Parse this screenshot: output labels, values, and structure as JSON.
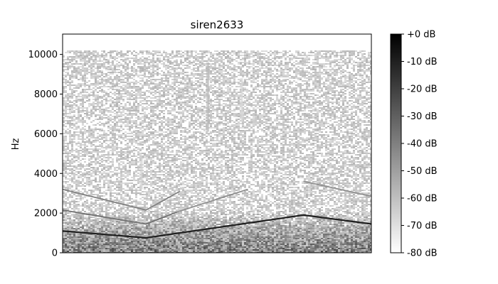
{
  "chart_data": {
    "type": "heatmap",
    "title": "siren2633",
    "xlabel": "",
    "ylabel": "Hz",
    "y_ticks": [
      0,
      2000,
      4000,
      6000,
      8000,
      10000
    ],
    "y_tick_labels": [
      "0",
      "2000",
      "4000",
      "6000",
      "8000",
      "10000"
    ],
    "ylim": [
      0,
      11025
    ],
    "x_ticks_shown": false,
    "colormap": "gray_r",
    "colorbar": {
      "ticks": [
        0,
        -10,
        -20,
        -30,
        -40,
        -50,
        -60,
        -70,
        -80
      ],
      "tick_labels": [
        "+0 dB",
        "-10 dB",
        "-20 dB",
        "-30 dB",
        "-40 dB",
        "-50 dB",
        "-60 dB",
        "-70 dB",
        "-80 dB"
      ],
      "range": [
        -80,
        0
      ]
    },
    "series": [
      {
        "points": [
          [
            0.0,
            1100
          ],
          [
            0.27,
            750
          ],
          [
            0.78,
            1900
          ],
          [
            1.0,
            1450
          ]
        ],
        "level_db": -10
      },
      {
        "points": [
          [
            0.0,
            2150
          ],
          [
            0.27,
            1450
          ],
          [
            0.37,
            2050
          ]
        ],
        "level_db": -35
      },
      {
        "points": [
          [
            0.0,
            3200
          ],
          [
            0.27,
            2150
          ],
          [
            0.38,
            3100
          ]
        ],
        "level_db": -40
      },
      {
        "points": [
          [
            0.37,
            2050
          ],
          [
            0.6,
            3200
          ]
        ],
        "level_db": -45
      },
      {
        "points": [
          [
            0.78,
            3600
          ],
          [
            1.0,
            2850
          ]
        ],
        "level_db": -45
      }
    ],
    "noise_ceiling_hz": 10200,
    "colors": {
      "background": "#ffffff",
      "axis": "#000000"
    }
  }
}
